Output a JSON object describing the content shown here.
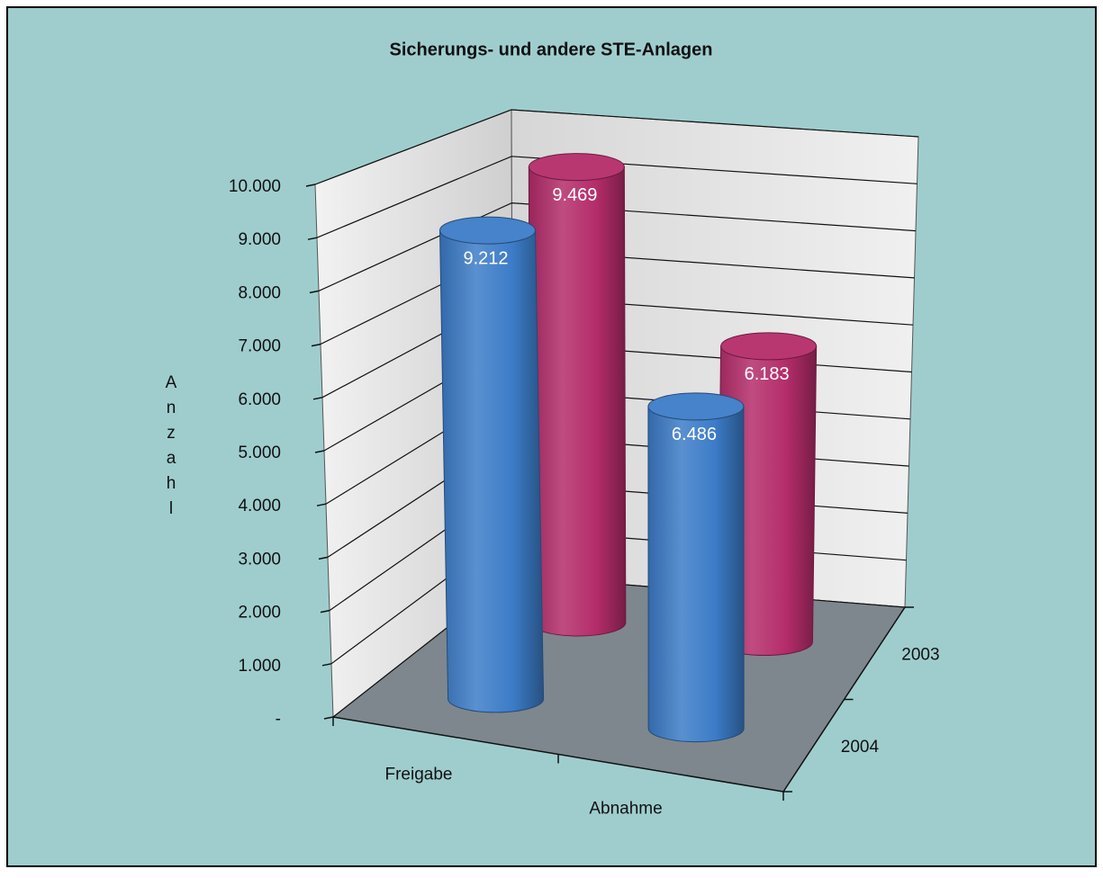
{
  "chart_data": {
    "type": "bar3d",
    "title": "Sicherungs- und andere STE-Anlagen",
    "y_label": "Anzahl",
    "categories": [
      "Freigabe",
      "Abnahme"
    ],
    "series": [
      {
        "name": "2004",
        "color": "#3c7cc8",
        "values": [
          9212,
          6486
        ],
        "value_labels": [
          "9.212",
          "6.486"
        ]
      },
      {
        "name": "2003",
        "color": "#b42c6a",
        "values": [
          9469,
          6183
        ],
        "value_labels": [
          "9.469",
          "6.183"
        ]
      }
    ],
    "ylim": [
      0,
      10000
    ],
    "yticks": [
      {
        "value": 0,
        "label": "-"
      },
      {
        "value": 1000,
        "label": "1.000"
      },
      {
        "value": 2000,
        "label": "2.000"
      },
      {
        "value": 3000,
        "label": "3.000"
      },
      {
        "value": 4000,
        "label": "4.000"
      },
      {
        "value": 5000,
        "label": "5.000"
      },
      {
        "value": 6000,
        "label": "6.000"
      },
      {
        "value": 7000,
        "label": "7.000"
      },
      {
        "value": 8000,
        "label": "8.000"
      },
      {
        "value": 9000,
        "label": "9.000"
      },
      {
        "value": 10000,
        "label": "10.000"
      }
    ],
    "grid": true
  }
}
